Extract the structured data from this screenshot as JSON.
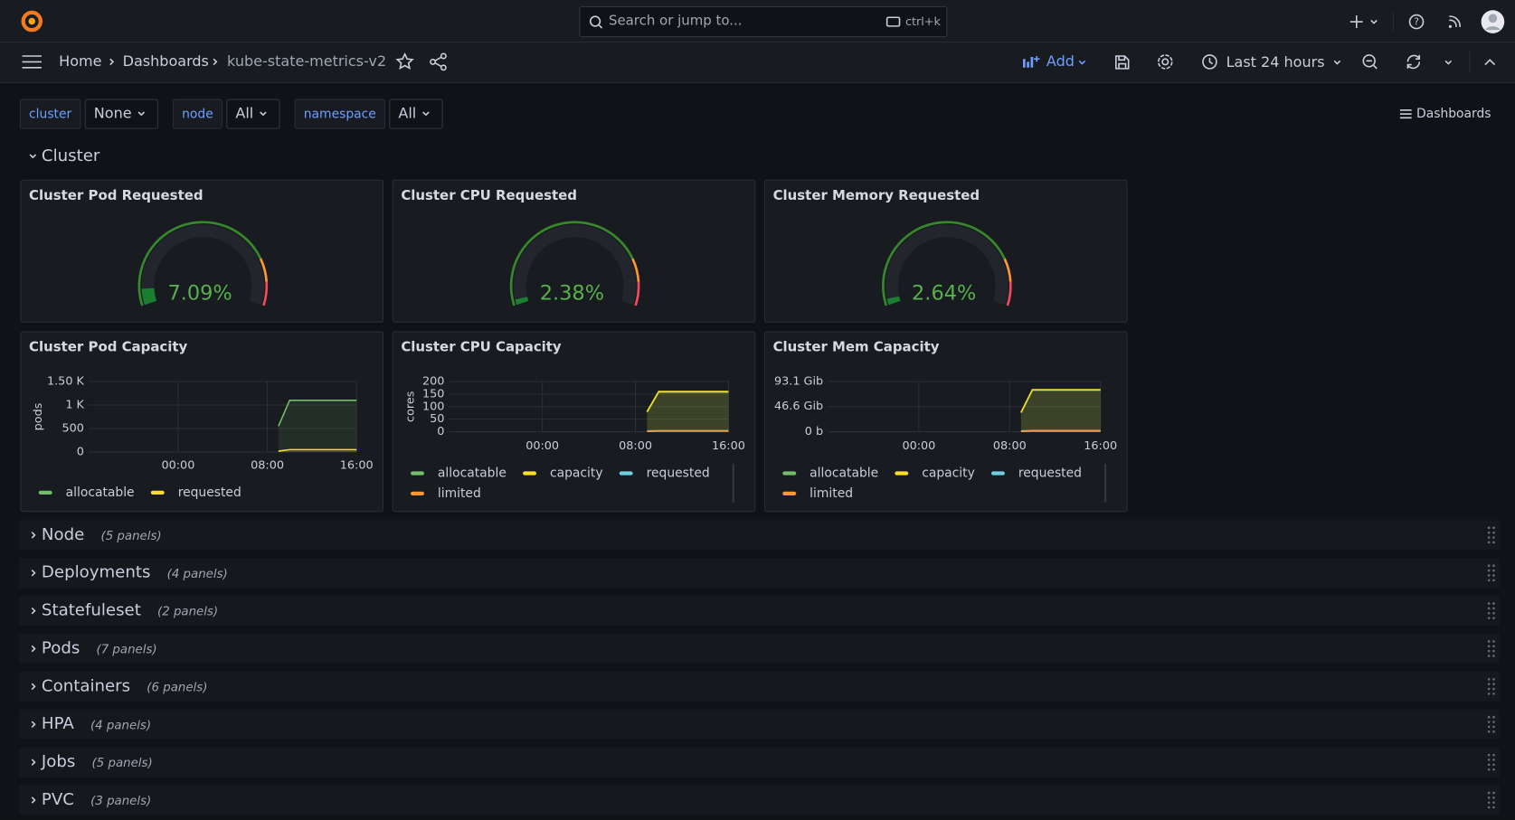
{
  "topbar": {
    "search_placeholder": "Search or jump to...",
    "shortcut": "ctrl+k"
  },
  "breadcrumbs": [
    "Home",
    "Dashboards",
    "kube-state-metrics-v2"
  ],
  "toolbar": {
    "add": "Add",
    "time_range": "Last 24 hours"
  },
  "variables": [
    {
      "label": "cluster",
      "value": "None"
    },
    {
      "label": "node",
      "value": "All"
    },
    {
      "label": "namespace",
      "value": "All"
    }
  ],
  "dashboards_link": "Dashboards",
  "open_row": "Cluster",
  "gauges": [
    {
      "title": "Cluster Pod Requested",
      "value": 7.09,
      "value_label": "7.09%"
    },
    {
      "title": "Cluster CPU Requested",
      "value": 2.38,
      "value_label": "2.38%"
    },
    {
      "title": "Cluster Memory Requested",
      "value": 2.64,
      "value_label": "2.64%"
    }
  ],
  "charts": [
    {
      "type": "line",
      "title": "Cluster Pod Capacity",
      "y_label": "pods",
      "ylim": [
        0,
        1500
      ],
      "yticks": [
        {
          "value": 1500,
          "label": "1.50 K"
        },
        {
          "value": 1000,
          "label": "1 K"
        },
        500,
        0
      ],
      "xticks": [
        "00:00",
        "08:00",
        "16:00"
      ],
      "series": [
        {
          "name": "allocatable",
          "color": "#73bf69",
          "values": [
            null,
            null,
            null,
            null,
            null,
            null,
            null,
            null,
            null,
            null,
            null,
            null,
            null,
            null,
            null,
            null,
            null,
            550,
            1100,
            1100,
            1100,
            1100,
            1100,
            1100,
            1100
          ]
        },
        {
          "name": "requested",
          "color": "#fade2a",
          "values": [
            null,
            null,
            null,
            null,
            null,
            null,
            null,
            null,
            null,
            null,
            null,
            null,
            null,
            null,
            null,
            null,
            null,
            20,
            50,
            50,
            50,
            50,
            50,
            50,
            50
          ]
        }
      ]
    },
    {
      "type": "line",
      "title": "Cluster CPU Capacity",
      "y_label": "cores",
      "ylim": [
        0,
        200
      ],
      "yticks": [
        200,
        150,
        100,
        50,
        0
      ],
      "xticks": [
        "00:00",
        "08:00",
        "16:00"
      ],
      "series": [
        {
          "name": "allocatable",
          "color": "#73bf69",
          "values": [
            null,
            null,
            null,
            null,
            null,
            null,
            null,
            null,
            null,
            null,
            null,
            null,
            null,
            null,
            null,
            null,
            null,
            78,
            158,
            158,
            158,
            158,
            158,
            158,
            158
          ]
        },
        {
          "name": "capacity",
          "color": "#fade2a",
          "values": [
            null,
            null,
            null,
            null,
            null,
            null,
            null,
            null,
            null,
            null,
            null,
            null,
            null,
            null,
            null,
            null,
            null,
            80,
            160,
            160,
            160,
            160,
            160,
            160,
            160
          ]
        },
        {
          "name": "requested",
          "color": "#6ed0e0",
          "values": [
            null,
            null,
            null,
            null,
            null,
            null,
            null,
            null,
            null,
            null,
            null,
            null,
            null,
            null,
            null,
            null,
            null,
            3,
            4,
            4,
            4,
            4,
            4,
            4,
            4
          ]
        },
        {
          "name": "limited",
          "color": "#ff9830",
          "values": [
            null,
            null,
            null,
            null,
            null,
            null,
            null,
            null,
            null,
            null,
            null,
            null,
            null,
            null,
            null,
            null,
            null,
            1,
            2,
            2,
            2,
            2,
            2,
            2,
            2
          ]
        }
      ]
    },
    {
      "type": "line",
      "title": "Cluster Mem Capacity",
      "y_label": null,
      "ylim": [
        0,
        93.1
      ],
      "yticks": [
        {
          "value": 93.1,
          "label": "93.1 Gib"
        },
        {
          "value": 46.6,
          "label": "46.6 Gib"
        },
        {
          "value": 0,
          "label": "0 b"
        }
      ],
      "xticks": [
        "00:00",
        "08:00",
        "16:00"
      ],
      "series": [
        {
          "name": "allocatable",
          "color": "#73bf69",
          "values": [
            null,
            null,
            null,
            null,
            null,
            null,
            null,
            null,
            null,
            null,
            null,
            null,
            null,
            null,
            null,
            null,
            null,
            35,
            77,
            77,
            77,
            77,
            77,
            77,
            77
          ]
        },
        {
          "name": "capacity",
          "color": "#fade2a",
          "values": [
            null,
            null,
            null,
            null,
            null,
            null,
            null,
            null,
            null,
            null,
            null,
            null,
            null,
            null,
            null,
            null,
            null,
            36,
            78,
            78,
            78,
            78,
            78,
            78,
            78
          ]
        },
        {
          "name": "requested",
          "color": "#6ed0e0",
          "values": [
            null,
            null,
            null,
            null,
            null,
            null,
            null,
            null,
            null,
            null,
            null,
            null,
            null,
            null,
            null,
            null,
            null,
            1.5,
            2,
            2,
            2,
            2,
            2,
            2,
            2
          ]
        },
        {
          "name": "limited",
          "color": "#ff9830",
          "values": [
            null,
            null,
            null,
            null,
            null,
            null,
            null,
            null,
            null,
            null,
            null,
            null,
            null,
            null,
            null,
            null,
            null,
            0.5,
            1,
            1,
            1,
            1,
            1,
            1,
            1
          ]
        }
      ]
    }
  ],
  "rows": [
    {
      "title": "Node",
      "count": "(5 panels)"
    },
    {
      "title": "Deployments",
      "count": "(4 panels)"
    },
    {
      "title": "Statefuleset",
      "count": "(2 panels)"
    },
    {
      "title": "Pods",
      "count": "(7 panels)"
    },
    {
      "title": "Containers",
      "count": "(6 panels)"
    },
    {
      "title": "HPA",
      "count": "(4 panels)"
    },
    {
      "title": "Jobs",
      "count": "(5 panels)"
    },
    {
      "title": "PVC",
      "count": "(3 panels)"
    }
  ]
}
